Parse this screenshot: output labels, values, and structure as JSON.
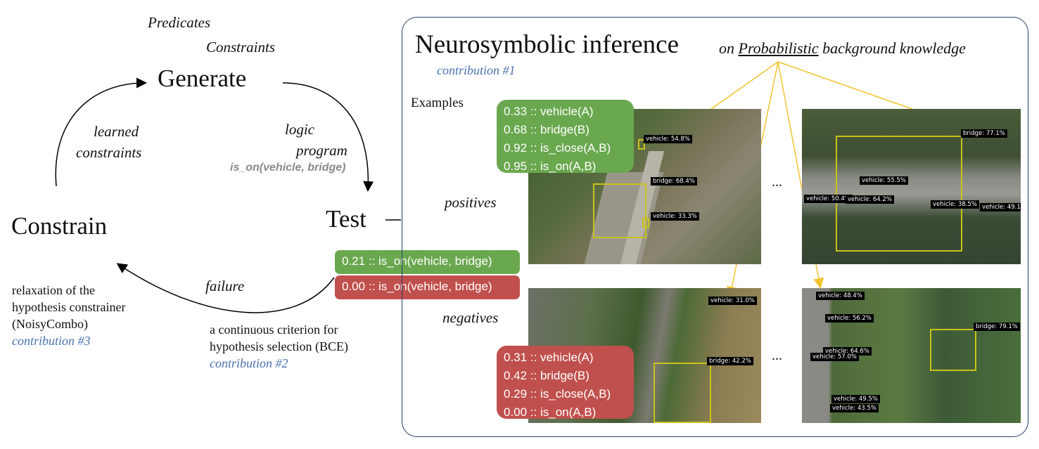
{
  "cycle": {
    "generate_label": "Generate",
    "test_label": "Test",
    "constrain_label": "Constrain",
    "predicates_label": "Predicates",
    "constraints_label": "Constraints",
    "learned_constraints_line1": "learned",
    "learned_constraints_line2": "constraints",
    "logic_program_line1": "logic",
    "logic_program_line2": "program",
    "hypothesis_example": "is_on(vehicle, bridge)",
    "failure_label": "failure",
    "relaxation_lines": [
      "relaxation of the",
      "hypothesis constrainer",
      "(NoisyCombo)"
    ],
    "contribution3": "contribution #3",
    "criterion_lines": [
      "a continuous criterion for",
      "hypothesis selection (BCE)"
    ],
    "contribution2": "contribution #2"
  },
  "scores": {
    "positive_score": "0.21 :: is_on(vehicle, bridge)",
    "negative_score": "0.00 :: is_on(vehicle, bridge)"
  },
  "panel": {
    "title": "Neurosymbolic inference",
    "subtitle_on": "on",
    "subtitle_prob": "Probabilistic",
    "subtitle_rest": "background knowledge",
    "contribution1": "contribution #1",
    "examples_label": "Examples",
    "positives_label": "positives",
    "negatives_label": "negatives",
    "ellipsis": "...",
    "positive_facts": [
      "0.33 :: vehicle(A)",
      "0.68 :: bridge(B)",
      "0.92 :: is_close(A,B)",
      "0.95 :: is_on(A,B)"
    ],
    "negative_facts": [
      "0.31 :: vehicle(A)",
      "0.42 :: bridge(B)",
      "0.29 :: is_close(A,B)",
      "0.00 :: is_on(A,B)"
    ]
  },
  "images": {
    "img1": [
      "vehicle: 54.8%",
      "bridge: 68.4%",
      "vehicle: 33.3%"
    ],
    "img2": [
      "bridge: 77.1%",
      "vehicle: 55.5%",
      "vehicle: 50.4%",
      "vehicle: 64.2%",
      "vehicle: 38.5%",
      "vehicle: 49.1%"
    ],
    "img3": [
      "vehicle: 31.0%",
      "bridge: 42.2%"
    ],
    "img4": [
      "vehicle: 48.4%",
      "vehicle: 56.2%",
      "vehicle: 64.6%",
      "vehicle: 57.0%",
      "bridge: 79.1%",
      "vehicle: 49.5%",
      "vehicle: 43.5%"
    ]
  },
  "colors": {
    "green": "#6aa84f",
    "red": "#c0504d",
    "blue": "#4a72b0",
    "detection_yellow": "#c9c21a",
    "arrow_gold": "#f2c32c"
  }
}
